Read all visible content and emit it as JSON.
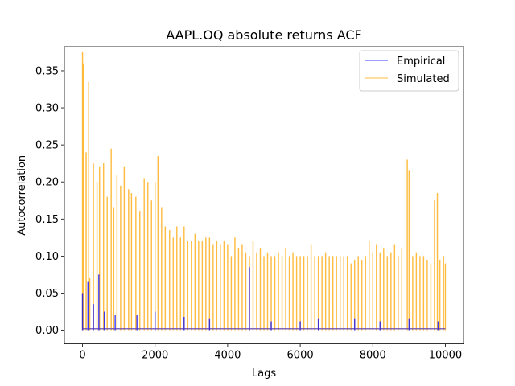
{
  "chart_data": {
    "type": "line",
    "title": "AAPL.OQ absolute returns ACF",
    "xlabel": "Lags",
    "ylabel": "Autocorrelation",
    "xlim": [
      -500,
      10500
    ],
    "ylim": [
      -0.0185,
      0.3825
    ],
    "xticks": [
      0,
      2000,
      4000,
      6000,
      8000,
      10000
    ],
    "xtick_labels": [
      "0",
      "2000",
      "4000",
      "6000",
      "8000",
      "10000"
    ],
    "yticks": [
      0.0,
      0.05,
      0.1,
      0.15,
      0.2,
      0.25,
      0.3,
      0.35
    ],
    "ytick_labels": [
      "0.00",
      "0.05",
      "0.10",
      "0.15",
      "0.20",
      "0.25",
      "0.30",
      "0.35"
    ],
    "grid": false,
    "legend_position": "upper right",
    "series": [
      {
        "name": "Empirical",
        "color": "#0000ff",
        "alpha": 0.5,
        "peaks": [
          [
            0,
            0.05
          ],
          [
            150,
            0.065
          ],
          [
            300,
            0.035
          ],
          [
            450,
            0.075
          ],
          [
            600,
            0.025
          ],
          [
            900,
            0.02
          ],
          [
            1500,
            0.02
          ],
          [
            2000,
            0.025
          ],
          [
            2800,
            0.018
          ],
          [
            3500,
            0.015
          ],
          [
            4600,
            0.085
          ],
          [
            5200,
            0.012
          ],
          [
            6000,
            0.012
          ],
          [
            6500,
            0.015
          ],
          [
            7500,
            0.015
          ],
          [
            8200,
            0.012
          ],
          [
            9000,
            0.015
          ],
          [
            9800,
            0.012
          ]
        ]
      },
      {
        "name": "Simulated",
        "color": "#ffa500",
        "alpha": 0.5,
        "peaks": [
          [
            0,
            0.375
          ],
          [
            20,
            0.36
          ],
          [
            100,
            0.24
          ],
          [
            170,
            0.335
          ],
          [
            200,
            0.07
          ],
          [
            300,
            0.225
          ],
          [
            400,
            0.2
          ],
          [
            470,
            0.22
          ],
          [
            580,
            0.225
          ],
          [
            680,
            0.18
          ],
          [
            790,
            0.245
          ],
          [
            860,
            0.165
          ],
          [
            950,
            0.21
          ],
          [
            1050,
            0.195
          ],
          [
            1150,
            0.22
          ],
          [
            1270,
            0.19
          ],
          [
            1350,
            0.185
          ],
          [
            1470,
            0.18
          ],
          [
            1580,
            0.16
          ],
          [
            1700,
            0.205
          ],
          [
            1800,
            0.2
          ],
          [
            1900,
            0.175
          ],
          [
            2000,
            0.2
          ],
          [
            2080,
            0.235
          ],
          [
            2180,
            0.165
          ],
          [
            2280,
            0.14
          ],
          [
            2400,
            0.135
          ],
          [
            2500,
            0.125
          ],
          [
            2600,
            0.14
          ],
          [
            2700,
            0.125
          ],
          [
            2800,
            0.14
          ],
          [
            2900,
            0.12
          ],
          [
            3000,
            0.12
          ],
          [
            3100,
            0.13
          ],
          [
            3200,
            0.12
          ],
          [
            3300,
            0.12
          ],
          [
            3400,
            0.125
          ],
          [
            3500,
            0.125
          ],
          [
            3600,
            0.115
          ],
          [
            3700,
            0.12
          ],
          [
            3800,
            0.115
          ],
          [
            3900,
            0.12
          ],
          [
            4000,
            0.115
          ],
          [
            4100,
            0.1
          ],
          [
            4200,
            0.125
          ],
          [
            4300,
            0.11
          ],
          [
            4400,
            0.115
          ],
          [
            4500,
            0.105
          ],
          [
            4600,
            0.1
          ],
          [
            4700,
            0.12
          ],
          [
            4800,
            0.105
          ],
          [
            4900,
            0.11
          ],
          [
            5000,
            0.1
          ],
          [
            5100,
            0.105
          ],
          [
            5200,
            0.1
          ],
          [
            5300,
            0.1
          ],
          [
            5400,
            0.105
          ],
          [
            5500,
            0.1
          ],
          [
            5600,
            0.11
          ],
          [
            5700,
            0.1
          ],
          [
            5800,
            0.105
          ],
          [
            5900,
            0.1
          ],
          [
            6000,
            0.1
          ],
          [
            6100,
            0.1
          ],
          [
            6200,
            0.1
          ],
          [
            6300,
            0.115
          ],
          [
            6400,
            0.1
          ],
          [
            6500,
            0.1
          ],
          [
            6600,
            0.1
          ],
          [
            6700,
            0.105
          ],
          [
            6800,
            0.1
          ],
          [
            6900,
            0.1
          ],
          [
            7000,
            0.1
          ],
          [
            7100,
            0.1
          ],
          [
            7200,
            0.1
          ],
          [
            7300,
            0.1
          ],
          [
            7400,
            0.09
          ],
          [
            7500,
            0.095
          ],
          [
            7600,
            0.1
          ],
          [
            7700,
            0.095
          ],
          [
            7800,
            0.1
          ],
          [
            7900,
            0.12
          ],
          [
            8000,
            0.105
          ],
          [
            8100,
            0.115
          ],
          [
            8200,
            0.105
          ],
          [
            8300,
            0.11
          ],
          [
            8400,
            0.1
          ],
          [
            8500,
            0.105
          ],
          [
            8600,
            0.115
          ],
          [
            8700,
            0.1
          ],
          [
            8800,
            0.11
          ],
          [
            8950,
            0.23
          ],
          [
            9000,
            0.215
          ],
          [
            9100,
            0.1
          ],
          [
            9200,
            0.105
          ],
          [
            9300,
            0.1
          ],
          [
            9400,
            0.1
          ],
          [
            9500,
            0.095
          ],
          [
            9600,
            0.09
          ],
          [
            9700,
            0.175
          ],
          [
            9780,
            0.185
          ],
          [
            9850,
            0.095
          ],
          [
            9950,
            0.1
          ],
          [
            10000,
            0.09
          ]
        ]
      }
    ]
  }
}
